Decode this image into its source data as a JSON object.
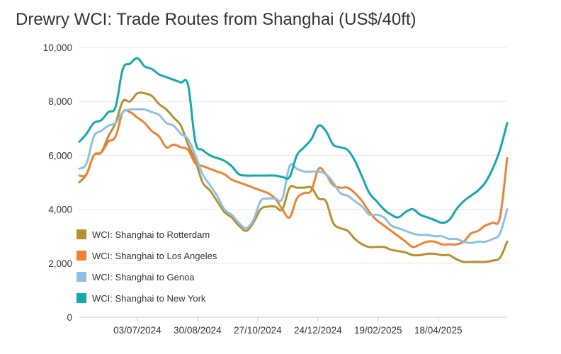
{
  "chart_data": {
    "type": "line",
    "title": "Drewry WCI: Trade Routes from Shanghai (US$/40ft)",
    "xlabel": "",
    "ylabel": "",
    "ylim": [
      0,
      10000
    ],
    "yticks": [
      0,
      2000,
      4000,
      6000,
      8000,
      10000
    ],
    "ytick_labels": [
      "0",
      "2,000",
      "4,000",
      "6,000",
      "8,000",
      "10,000"
    ],
    "x_tick_labels": [
      "03/07/2024",
      "30/08/2024",
      "27/10/2024",
      "24/12/2024",
      "19/02/2025",
      "18/04/2025"
    ],
    "x_tick_weeks": [
      8,
      16.3,
      24.6,
      32.9,
      41.2,
      49.5
    ],
    "x_range_weeks": [
      0,
      59
    ],
    "grid": true,
    "legend_position": "bottom-left",
    "colors": {
      "rotterdam": "#b5902e",
      "los_angeles": "#f08032",
      "genoa": "#8dc0e3",
      "new_york": "#14a8a8",
      "grid": "#e6e6e6",
      "axis": "#c8c8c8"
    },
    "series": [
      {
        "name": "WCI: Shanghai to Rotterdam",
        "color": "#b5902e",
        "x": [
          0,
          1,
          2,
          3,
          4,
          5,
          6,
          7,
          8,
          9,
          10,
          11,
          12,
          13,
          14,
          15,
          16,
          17,
          18,
          19,
          20,
          21,
          22,
          23,
          24,
          25,
          26,
          27,
          28,
          29,
          30,
          31,
          32,
          33,
          34,
          35,
          36,
          37,
          38,
          39,
          40,
          41,
          42,
          43,
          44,
          45,
          46,
          47,
          48,
          49,
          50,
          51,
          52,
          53,
          54,
          55,
          56,
          57,
          58,
          59
        ],
        "values": [
          5000,
          5300,
          6000,
          6100,
          6700,
          7200,
          8000,
          8000,
          8300,
          8300,
          8200,
          7900,
          7700,
          7400,
          7100,
          6400,
          5800,
          5000,
          4700,
          4300,
          3900,
          3700,
          3400,
          3200,
          3500,
          4000,
          4100,
          4100,
          4000,
          4800,
          4800,
          4800,
          4800,
          4400,
          4300,
          3500,
          3300,
          3200,
          2900,
          2700,
          2600,
          2600,
          2600,
          2500,
          2450,
          2400,
          2300,
          2300,
          2350,
          2350,
          2300,
          2300,
          2150,
          2050,
          2050,
          2050,
          2050,
          2100,
          2200,
          2800
        ]
      },
      {
        "name": "WCI: Shanghai to Los Angeles",
        "color": "#f08032",
        "x": [
          0,
          1,
          2,
          3,
          4,
          5,
          6,
          7,
          8,
          9,
          10,
          11,
          12,
          13,
          14,
          15,
          16,
          17,
          18,
          19,
          20,
          21,
          22,
          23,
          24,
          25,
          26,
          27,
          28,
          29,
          30,
          31,
          32,
          33,
          34,
          35,
          36,
          37,
          38,
          39,
          40,
          41,
          42,
          43,
          44,
          45,
          46,
          47,
          48,
          49,
          50,
          51,
          52,
          53,
          54,
          55,
          56,
          57,
          58,
          59
        ],
        "values": [
          5250,
          5300,
          6000,
          6100,
          6500,
          6700,
          7600,
          7600,
          7400,
          7200,
          6900,
          6700,
          6300,
          6400,
          6300,
          6200,
          5700,
          5600,
          5500,
          5400,
          5300,
          5100,
          5000,
          4900,
          4800,
          4700,
          4600,
          4400,
          4000,
          3700,
          4400,
          4600,
          4700,
          5500,
          5300,
          4900,
          4800,
          4800,
          4600,
          4300,
          3900,
          3600,
          3400,
          3200,
          3000,
          2800,
          2600,
          2700,
          2800,
          2800,
          2700,
          2700,
          2700,
          2800,
          3100,
          3200,
          3400,
          3500,
          3700,
          5900
        ]
      },
      {
        "name": "WCI: Shanghai to Genoa",
        "color": "#8dc0e3",
        "x": [
          0,
          1,
          2,
          3,
          4,
          5,
          6,
          7,
          8,
          9,
          10,
          11,
          12,
          13,
          14,
          15,
          16,
          17,
          18,
          19,
          20,
          21,
          22,
          23,
          24,
          25,
          26,
          27,
          28,
          29,
          30,
          31,
          32,
          33,
          34,
          35,
          36,
          37,
          38,
          39,
          40,
          41,
          42,
          43,
          44,
          45,
          46,
          47,
          48,
          49,
          50,
          51,
          52,
          53,
          54,
          55,
          56,
          57,
          58,
          59
        ],
        "values": [
          5500,
          5700,
          6700,
          6900,
          7100,
          7200,
          7600,
          7700,
          7700,
          7700,
          7600,
          7500,
          7200,
          7100,
          6800,
          6600,
          6000,
          5300,
          4900,
          4500,
          4000,
          3800,
          3500,
          3300,
          3600,
          4300,
          4400,
          4400,
          4400,
          5600,
          5500,
          5400,
          5400,
          5400,
          5300,
          5000,
          4600,
          4500,
          4300,
          4100,
          3800,
          3800,
          3700,
          3400,
          3300,
          3200,
          3100,
          3050,
          3050,
          3000,
          3000,
          2900,
          2900,
          2800,
          2750,
          2800,
          2800,
          2900,
          3100,
          4000
        ]
      },
      {
        "name": "WCI: Shanghai to New York",
        "color": "#14a8a8",
        "x": [
          0,
          1,
          2,
          3,
          4,
          5,
          6,
          7,
          8,
          9,
          10,
          11,
          12,
          13,
          14,
          15,
          16,
          17,
          18,
          19,
          20,
          21,
          22,
          23,
          24,
          25,
          26,
          27,
          28,
          29,
          30,
          31,
          32,
          33,
          34,
          35,
          36,
          37,
          38,
          39,
          40,
          41,
          42,
          43,
          44,
          45,
          46,
          47,
          48,
          49,
          50,
          51,
          52,
          53,
          54,
          55,
          56,
          57,
          58,
          59
        ],
        "values": [
          6500,
          6800,
          7200,
          7300,
          7600,
          7800,
          9200,
          9400,
          9600,
          9300,
          9200,
          9000,
          8900,
          8800,
          8700,
          8600,
          6500,
          6200,
          6000,
          5900,
          5800,
          5600,
          5300,
          5250,
          5250,
          5250,
          5250,
          5250,
          5200,
          5200,
          6000,
          6300,
          6600,
          7100,
          6900,
          6400,
          6300,
          6200,
          5800,
          5200,
          4600,
          4300,
          4000,
          3800,
          3700,
          3900,
          4000,
          3800,
          3700,
          3600,
          3500,
          3600,
          4000,
          4300,
          4500,
          4700,
          5000,
          5500,
          6200,
          7200
        ]
      }
    ]
  }
}
